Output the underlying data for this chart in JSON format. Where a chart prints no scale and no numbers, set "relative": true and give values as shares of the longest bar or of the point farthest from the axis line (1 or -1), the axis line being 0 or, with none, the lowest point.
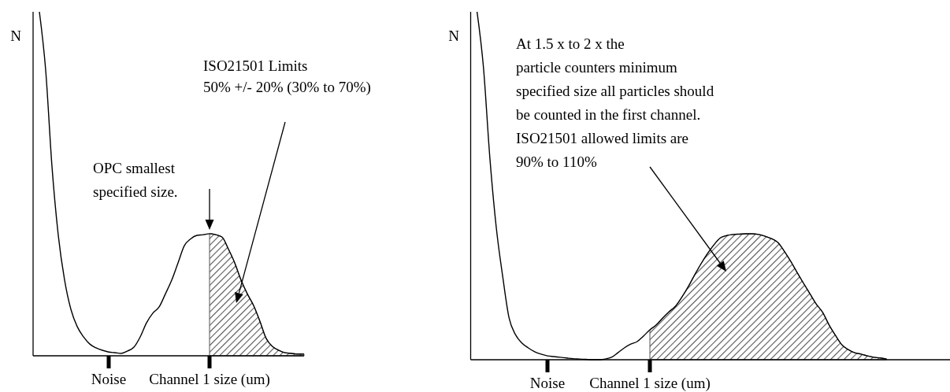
{
  "chart_data": [
    {
      "type": "line",
      "relative": true,
      "ylabel": "N",
      "categories": [
        null,
        null,
        null,
        null,
        null,
        null,
        null,
        null,
        null,
        null,
        null,
        null,
        "Noise",
        null,
        null,
        null,
        null,
        null,
        null,
        null,
        null,
        null,
        null,
        null,
        null,
        null,
        null,
        null,
        "Channel 1 size (um)",
        null,
        null,
        null,
        null,
        null,
        null,
        null,
        null,
        null,
        null,
        null,
        null,
        null,
        null,
        null
      ],
      "series": [
        {
          "color": "#000000",
          "values": [
            null,
            1.0,
            0.83,
            0.55,
            0.35,
            0.22,
            0.135,
            0.085,
            0.055,
            0.034,
            0.023,
            0.016,
            0.011,
            0.009,
            0.007,
            0.014,
            0.025,
            0.055,
            0.096,
            0.124,
            0.142,
            0.18,
            0.22,
            0.27,
            0.32,
            0.34,
            0.35,
            0.352,
            0.355,
            0.352,
            0.345,
            0.31,
            0.27,
            0.22,
            0.18,
            0.146,
            0.1,
            0.05,
            0.027,
            0.016,
            0.009,
            0.007,
            0.005,
            0.005
          ]
        },
        {
          "type": "area",
          "color": "#555555",
          "values": [
            null,
            null,
            null,
            null,
            null,
            null,
            null,
            null,
            null,
            null,
            null,
            null,
            null,
            null,
            null,
            null,
            null,
            null,
            null,
            null,
            null,
            null,
            null,
            null,
            null,
            null,
            null,
            null,
            0.355,
            0.352,
            0.345,
            0.31,
            0.27,
            0.22,
            0.18,
            0.146,
            0.1,
            0.05,
            0.027,
            0.016,
            0.009,
            0.007,
            0.005,
            0.005
          ]
        }
      ],
      "annotations": [
        "OPC smallest\nspecified size.",
        "ISO21501 Limits\n50% +/- 20% (30% to 70%)"
      ]
    },
    {
      "type": "line",
      "relative": true,
      "ylabel": "N",
      "categories": [
        null,
        null,
        null,
        null,
        null,
        null,
        null,
        null,
        null,
        null,
        null,
        null,
        "Noise",
        null,
        null,
        null,
        null,
        null,
        null,
        null,
        null,
        null,
        null,
        null,
        null,
        null,
        null,
        null,
        "Channel 1 size (um)",
        null,
        null,
        null,
        null,
        null,
        null,
        null,
        null,
        null,
        null,
        null,
        null,
        null,
        null,
        null,
        null,
        null,
        null,
        null,
        null,
        null,
        null,
        null,
        null,
        null,
        null,
        null,
        null,
        null,
        null,
        null,
        null,
        null,
        null,
        null,
        null,
        null,
        null,
        null,
        null,
        null,
        null,
        null,
        null,
        null
      ],
      "series": [
        {
          "color": "#000000",
          "values": [
            null,
            1.0,
            0.84,
            0.58,
            0.38,
            0.24,
            0.12,
            0.072,
            0.048,
            0.034,
            0.023,
            0.016,
            0.011,
            0.009,
            0.007,
            0.005,
            0.003,
            0.002,
            0.001,
            0,
            0,
            0.002,
            0.007,
            0.02,
            0.034,
            0.045,
            0.052,
            0.068,
            0.086,
            0.1,
            0.12,
            0.138,
            0.154,
            0.18,
            0.21,
            0.244,
            0.276,
            0.305,
            0.33,
            0.35,
            0.357,
            0.36,
            0.361,
            0.362,
            0.362,
            0.36,
            0.355,
            0.348,
            0.337,
            0.312,
            0.283,
            0.251,
            0.22,
            0.19,
            0.16,
            0.136,
            0.1,
            0.07,
            0.043,
            0.029,
            0.02,
            0.016,
            0.011,
            0.007,
            0.005,
            0.002,
            null,
            null,
            null,
            null,
            null,
            null,
            null,
            null
          ]
        },
        {
          "type": "area",
          "color": "#555555",
          "values": [
            null,
            null,
            null,
            null,
            null,
            null,
            null,
            null,
            null,
            null,
            null,
            null,
            null,
            null,
            null,
            null,
            null,
            null,
            null,
            null,
            null,
            null,
            null,
            null,
            null,
            null,
            null,
            null,
            0.086,
            0.1,
            0.12,
            0.138,
            0.154,
            0.18,
            0.21,
            0.244,
            0.276,
            0.305,
            0.33,
            0.35,
            0.357,
            0.36,
            0.361,
            0.362,
            0.362,
            0.36,
            0.355,
            0.348,
            0.337,
            0.312,
            0.283,
            0.251,
            0.22,
            0.19,
            0.16,
            0.136,
            0.1,
            0.07,
            0.043,
            0.029,
            0.02,
            0.016,
            0.011,
            0.007,
            0.005,
            0.002,
            null,
            null,
            null,
            null,
            null,
            null,
            null,
            null
          ]
        }
      ],
      "annotations": [
        "At 1.5 x to 2 x the\nparticle counters minimum\nspecified size all particles should\nbe counted in the first channel.\nISO21501 allowed limits are\n90% to 110%"
      ]
    }
  ]
}
